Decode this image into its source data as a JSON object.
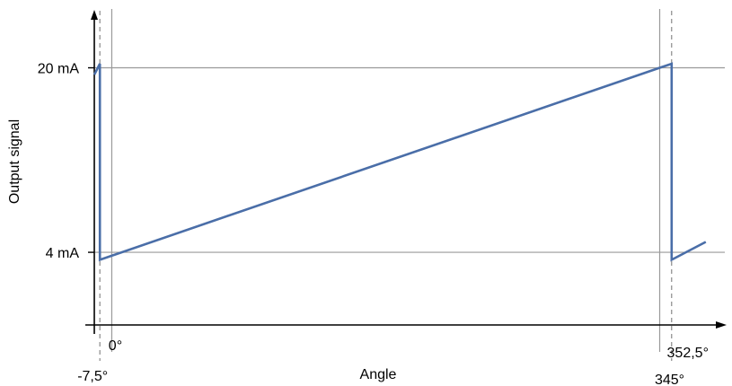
{
  "chart_data": {
    "type": "line",
    "title": "",
    "xlabel": "Angle",
    "ylabel": "Output signal",
    "y_tick_labels": [
      {
        "value": 20,
        "label": "20 mA"
      },
      {
        "value": 4,
        "label": "4 mA"
      }
    ],
    "x_tick_labels": [
      {
        "value": -7.5,
        "label": "-7,5°"
      },
      {
        "value": 0,
        "label": "0°"
      },
      {
        "value": 345,
        "label": "345°"
      },
      {
        "value": 352.5,
        "label": "352,5°"
      }
    ],
    "xlim": [
      -11,
      386
    ],
    "ylim": [
      -2.3,
      23.7
    ],
    "grid": {
      "horizontal_at": [
        20,
        4
      ],
      "vertical_at": [
        0,
        345
      ],
      "dashed_at": [
        -7.5,
        352.5
      ]
    },
    "series": [
      {
        "color": "#4a6ea8",
        "x": [
          -11,
          -7.5,
          -7.5,
          345,
          352.5,
          352.5,
          374
        ],
        "y": [
          19.4,
          20.35,
          3.35,
          20,
          20.35,
          3.35,
          4.9
        ]
      }
    ],
    "colors": {
      "line": "#4a6ea8",
      "grid": "#9a9a9a",
      "axis": "#000000"
    }
  }
}
